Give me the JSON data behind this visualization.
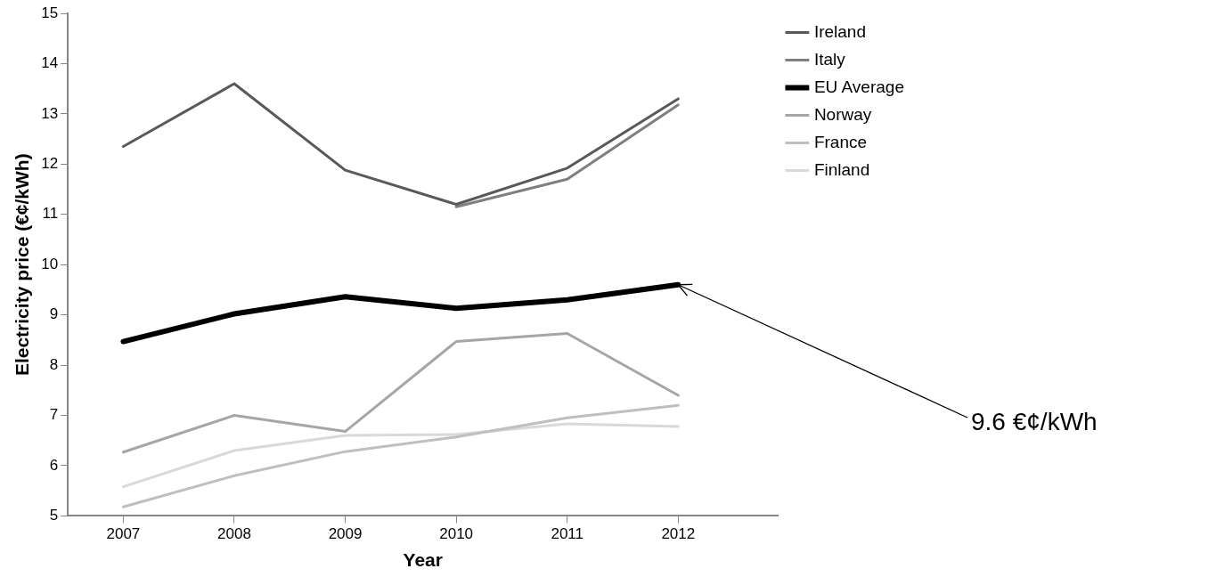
{
  "chart_data": {
    "type": "line",
    "xlabel": "Year",
    "ylabel": "Electricity price (€¢/kWh)",
    "x": [
      2007,
      2008,
      2009,
      2010,
      2011,
      2012
    ],
    "xlim": [
      2006.5,
      2012.9
    ],
    "xticks": [
      2007,
      2008,
      2009,
      2010,
      2011,
      2012
    ],
    "ylim": [
      5,
      15
    ],
    "yticks": [
      5,
      6,
      7,
      8,
      9,
      10,
      11,
      12,
      13,
      14,
      15
    ],
    "grid": false,
    "legend": "right",
    "marker": "none",
    "line_style": "solid",
    "series": [
      {
        "name": "Ireland",
        "color": "#595959",
        "values": [
          12.35,
          13.6,
          11.88,
          11.2,
          11.92,
          13.3
        ]
      },
      {
        "name": "Italy",
        "color": "#7f7f7f",
        "values": [
          null,
          null,
          null,
          11.15,
          11.7,
          13.18
        ]
      },
      {
        "name": "EU Average",
        "color": "#000000",
        "values": [
          8.47,
          9.02,
          9.36,
          9.13,
          9.3,
          9.6
        ]
      },
      {
        "name": "Norway",
        "color": "#a6a6a6",
        "values": [
          6.27,
          7.0,
          6.68,
          8.47,
          8.63,
          7.4
        ]
      },
      {
        "name": "France",
        "color": "#bfbfbf",
        "values": [
          5.18,
          5.8,
          6.28,
          6.57,
          6.95,
          7.2
        ]
      },
      {
        "name": "Finland",
        "color": "#d9d9d9",
        "values": [
          5.58,
          6.3,
          6.6,
          6.62,
          6.83,
          6.78
        ]
      }
    ],
    "annotations": [
      {
        "text": "9.6 €¢/kWh",
        "x": 2012,
        "y": 9.6
      }
    ]
  }
}
